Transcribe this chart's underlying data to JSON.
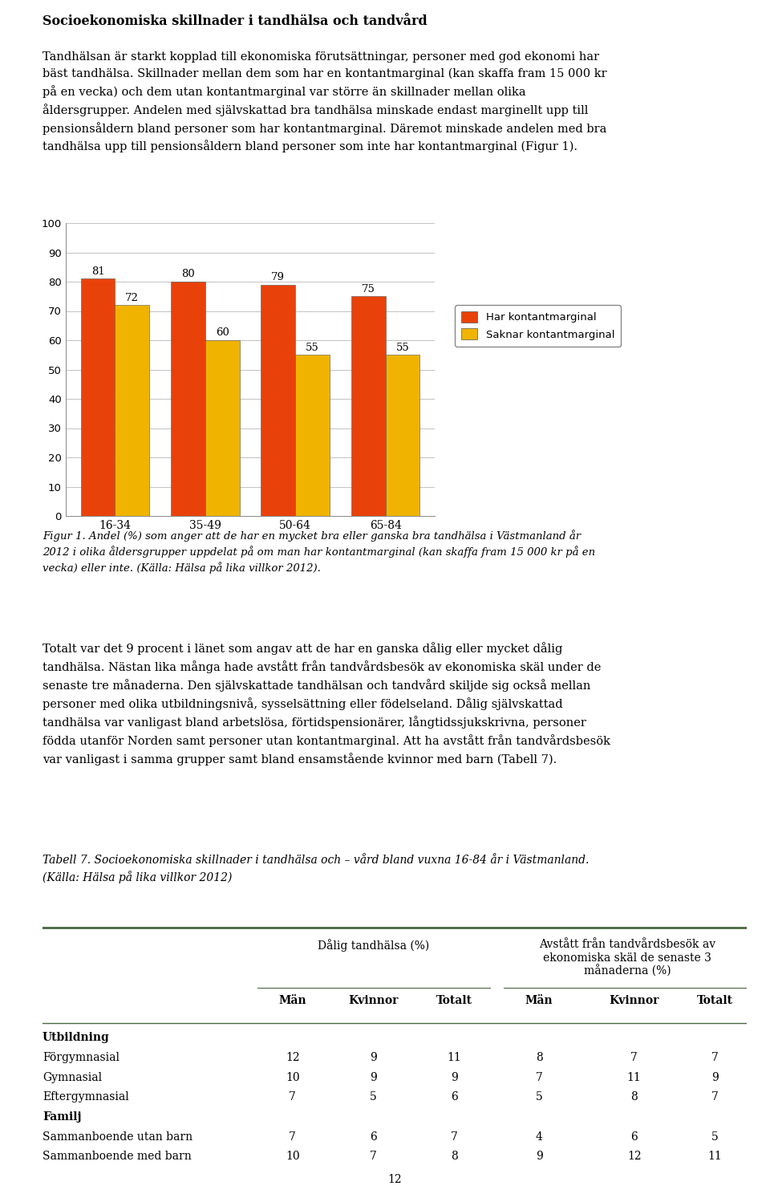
{
  "title": "Socioekonomiska skillnader i tandhälsa och tandvård",
  "intro_text_line1": "Tandhälsan är starkt kopplad till ekonomiska förutsättningar, personer med god ekonomi har",
  "intro_text_line2": "bäst tandhälsa. Skillnader mellan dem som har en kontantmarginal (kan skaffa fram 15 000 kr",
  "intro_text_line3": "på en vecka) och dem utan kontantmarginal var större än skillnader mellan olika",
  "intro_text_line4": "åldersgrupper. Andelen med självskattad bra tandhälsa minskade endast marginellt upp till",
  "intro_text_line5": "pensionsåldern bland personer som har kontantmarginal. Däremot minskade andelen med bra",
  "intro_text_line6": "tandhälsa upp till pensionsåldern bland personer som inte har kontantmarginal (Figur 1).",
  "categories": [
    "16-34",
    "35-49",
    "50-64",
    "65-84"
  ],
  "har_values": [
    81,
    80,
    79,
    75
  ],
  "saknar_values": [
    72,
    60,
    55,
    55
  ],
  "har_color": "#E8420A",
  "saknar_color": "#F0B400",
  "legend_har": "Har kontantmarginal",
  "legend_saknar": "Saknar kontantmarginal",
  "ylim": [
    0,
    100
  ],
  "yticks": [
    0,
    10,
    20,
    30,
    40,
    50,
    60,
    70,
    80,
    90,
    100
  ],
  "fig_caption": "Figur 1. Andel (%) som anger att de har en mycket bra eller ganska bra tandhälsa i Västmanland år\n2012 i olika åldersgrupper uppdelat på om man har kontantmarginal (kan skaffa fram 15 000 kr på en\nvecka) eller inte. (Källa: Hälsa på lika villkor 2012).",
  "body_text": "Totalt var det 9 procent i länet som angav att de har en ganska dålig eller mycket dålig\ntandhälsa. Nästan lika många hade avstått från tandvårdsbesök av ekonomiska skäl under de\nsenaste tre månaderna. Den självskattade tandhälsan och tandvård skiljde sig också mellan\npersoner med olika utbildningsnivå, sysselsättning eller födelseland. Dålig självskattad\ntandhälsa var vanligast bland arbetslösa, förtidspensionärer, långtidssjukskrivna, personer\nfödda utanför Norden samt personer utan kontantmarginal. Att ha avstått från tandvårdsbesök\nvar vanligast i samma grupper samt bland ensamstående kvinnor med barn (Tabell 7).",
  "table_caption": "Tabell 7. Socioekonomiska skillnader i tandhälsa och – vård bland vuxna 16-84 år i Västmanland.\n(Källa: Hälsa på lika villkor 2012)",
  "table_line_color": "#4A6741",
  "page_number": "12"
}
